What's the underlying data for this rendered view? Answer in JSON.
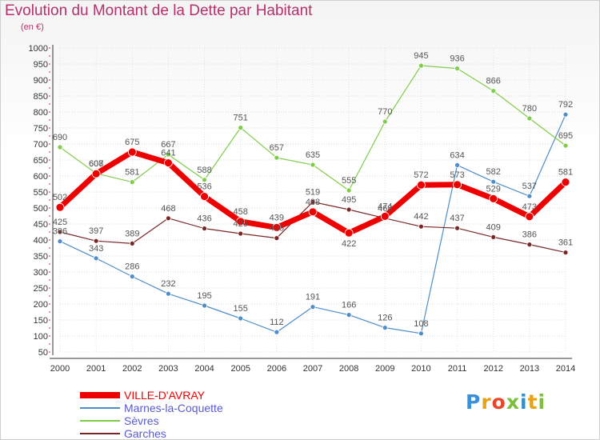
{
  "title": "Evolution du Montant de la Dette par Habitant",
  "unit": "(en €)",
  "brand": "Proxiti",
  "chart_data": {
    "type": "line",
    "x": [
      "2000",
      "2001",
      "2002",
      "2003",
      "2004",
      "2005",
      "2006",
      "2007",
      "2008",
      "2009",
      "2010",
      "2011",
      "2012",
      "2013",
      "2014"
    ],
    "ylim": [
      50,
      1000
    ],
    "yticks": [
      50,
      100,
      150,
      200,
      250,
      300,
      350,
      400,
      450,
      500,
      550,
      600,
      650,
      700,
      750,
      800,
      850,
      900,
      950,
      1000
    ],
    "grid": true,
    "legend": "bottom-left",
    "series": [
      {
        "name": "Marnes-la-Coquette",
        "color": "#4d8dc9",
        "width": 1.2,
        "point_radius": 3,
        "values": [
          396,
          343,
          286,
          232,
          195,
          155,
          112,
          191,
          166,
          126,
          108,
          634,
          582,
          537,
          792
        ],
        "label_pos": [
          "above",
          "above",
          "above",
          "above",
          "above",
          "above",
          "above",
          "above",
          "above",
          "above",
          "above",
          "above",
          "above",
          "above",
          "above"
        ]
      },
      {
        "name": "Sèvres",
        "color": "#7fcc4a",
        "width": 1.2,
        "point_radius": 3,
        "values": [
          690,
          608,
          581,
          667,
          588,
          751,
          657,
          635,
          555,
          770,
          945,
          936,
          866,
          780,
          695
        ],
        "label_pos": [
          "above",
          "above",
          "above",
          "above",
          "above",
          "above",
          "above",
          "above",
          "above",
          "above",
          "above",
          "above",
          "above",
          "above",
          "above"
        ]
      },
      {
        "name": "Garches",
        "color": "#7a2626",
        "width": 1.2,
        "point_radius": 3,
        "values": [
          425,
          397,
          389,
          468,
          436,
          420,
          406,
          519,
          495,
          468,
          442,
          437,
          409,
          386,
          361
        ],
        "label_pos": [
          "above",
          "above",
          "above",
          "above",
          "above",
          "above",
          "above",
          "above",
          "above",
          "above",
          "above",
          "above",
          "above",
          "above",
          "above"
        ]
      },
      {
        "name": "VILLE-D'AVRAY",
        "color": "#ee0000",
        "width": 7,
        "point_radius": 5,
        "values": [
          502,
          607,
          675,
          641,
          536,
          458,
          439,
          488,
          422,
          474,
          572,
          573,
          529,
          473,
          581
        ],
        "label_pos": [
          "above",
          "above",
          "above",
          "above",
          "above",
          "above",
          "above",
          "above",
          "below",
          "above",
          "above",
          "above",
          "above",
          "above",
          "above"
        ]
      }
    ]
  }
}
